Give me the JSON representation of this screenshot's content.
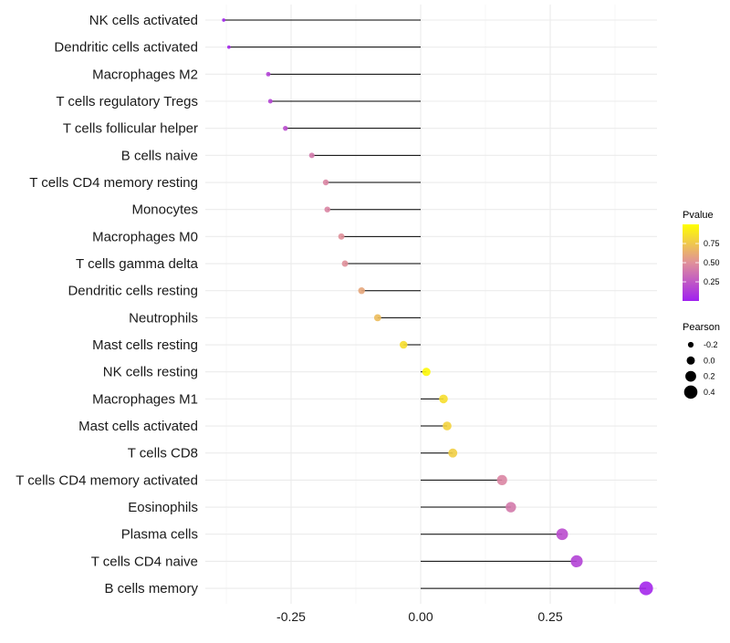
{
  "chart_data": {
    "type": "lollipop",
    "title": "",
    "xlabel": "",
    "ylabel": "",
    "xlim": [
      -0.4,
      0.46
    ],
    "xticks": [
      -0.25,
      0.0,
      0.25
    ],
    "xtick_labels": [
      "-0.25",
      "0.00",
      "0.25"
    ],
    "grid": true,
    "categories": [
      "NK cells activated",
      "Dendritic cells activated",
      "Macrophages M2",
      "T cells regulatory  Tregs ",
      "T cells follicular helper",
      "B cells naive",
      "T cells CD4 memory resting",
      "Monocytes",
      "Macrophages M0",
      "T cells gamma delta",
      "Dendritic cells resting",
      "Neutrophils",
      "Mast cells resting",
      "NK cells resting",
      "Macrophages M1",
      "Mast cells activated",
      "T cells CD8",
      "T cells CD4 memory activated",
      "Eosinophils",
      "Plasma cells",
      "T cells CD4 naive",
      "B cells memory"
    ],
    "pearson": [
      -0.38,
      -0.37,
      -0.294,
      -0.29,
      -0.261,
      -0.21,
      -0.183,
      -0.18,
      -0.153,
      -0.146,
      -0.114,
      -0.083,
      -0.033,
      0.011,
      0.044,
      0.051,
      0.062,
      0.157,
      0.174,
      0.273,
      0.301,
      0.435
    ],
    "pvalue": [
      0.02,
      0.03,
      0.15,
      0.16,
      0.2,
      0.4,
      0.45,
      0.45,
      0.5,
      0.5,
      0.6,
      0.7,
      0.85,
      0.97,
      0.85,
      0.8,
      0.78,
      0.45,
      0.4,
      0.2,
      0.15,
      0.03
    ],
    "legend": {
      "placement": "right",
      "color": {
        "title": "Pvalue",
        "ticks": [
          0.25,
          0.5,
          0.75
        ],
        "tick_labels": [
          "0.25",
          "0.50",
          "0.75"
        ],
        "low": "#a020f0",
        "mid": "#e0909a",
        "high": "#ffff00"
      },
      "size": {
        "title": "Pearson",
        "values": [
          -0.2,
          0.0,
          0.2,
          0.4
        ],
        "labels": [
          "-0.2",
          "0.0",
          "0.2",
          "0.4"
        ]
      }
    }
  }
}
